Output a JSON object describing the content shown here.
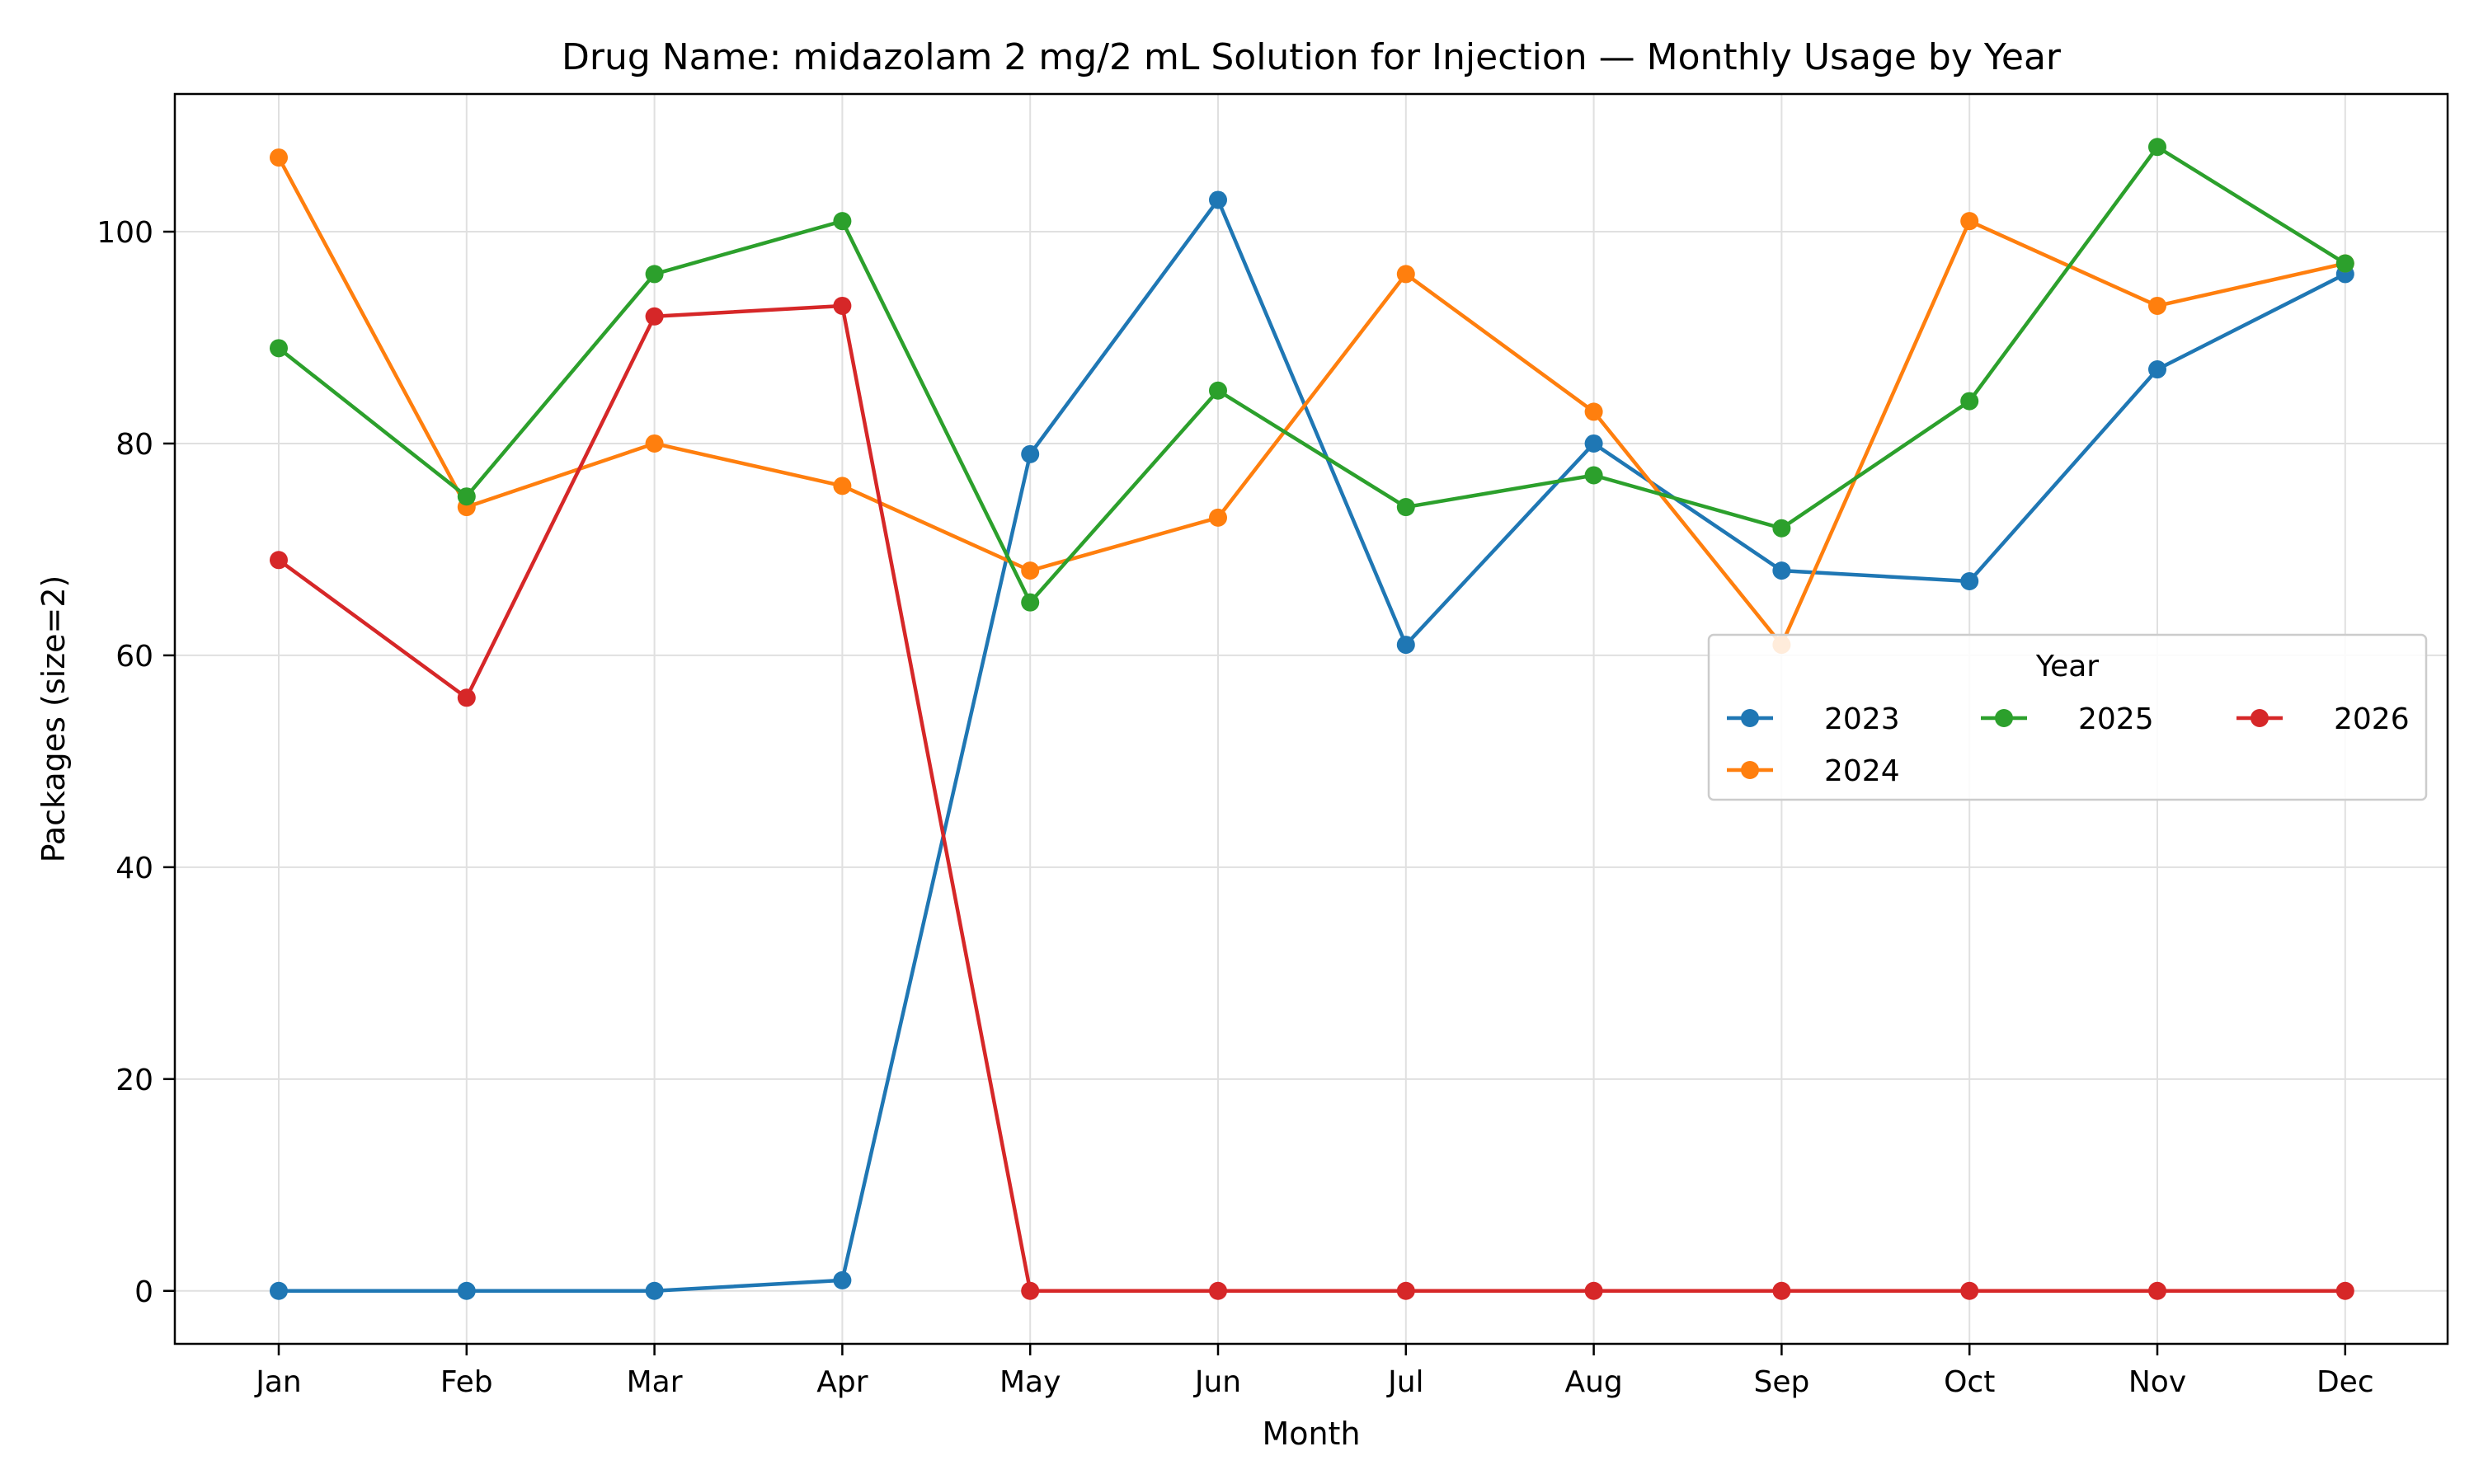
{
  "chart_data": {
    "type": "line",
    "title": "Drug Name: midazolam 2 mg/2 mL Solution for Injection — Monthly Usage by Year",
    "xlabel": "Month",
    "ylabel": "Packages (size=2)",
    "categories": [
      "Jan",
      "Feb",
      "Mar",
      "Apr",
      "May",
      "Jun",
      "Jul",
      "Aug",
      "Sep",
      "Oct",
      "Nov",
      "Dec"
    ],
    "ylim": [
      -5,
      113
    ],
    "yticks": [
      0,
      20,
      40,
      60,
      80,
      100
    ],
    "grid": true,
    "legend": {
      "title": "Year",
      "placement": "center-right",
      "columns": 3
    },
    "series": [
      {
        "name": "2023",
        "color": "#1f77b4",
        "values": [
          0,
          0,
          0,
          1,
          79,
          103,
          61,
          80,
          68,
          67,
          87,
          96
        ]
      },
      {
        "name": "2024",
        "color": "#ff7f0e",
        "values": [
          107,
          74,
          80,
          76,
          68,
          73,
          96,
          83,
          61,
          101,
          93,
          97
        ]
      },
      {
        "name": "2025",
        "color": "#2ca02c",
        "values": [
          89,
          75,
          96,
          101,
          65,
          85,
          74,
          77,
          72,
          84,
          108,
          97
        ]
      },
      {
        "name": "2026",
        "color": "#d62728",
        "values": [
          69,
          56,
          92,
          93,
          0,
          0,
          0,
          0,
          0,
          0,
          0,
          0
        ]
      }
    ]
  }
}
